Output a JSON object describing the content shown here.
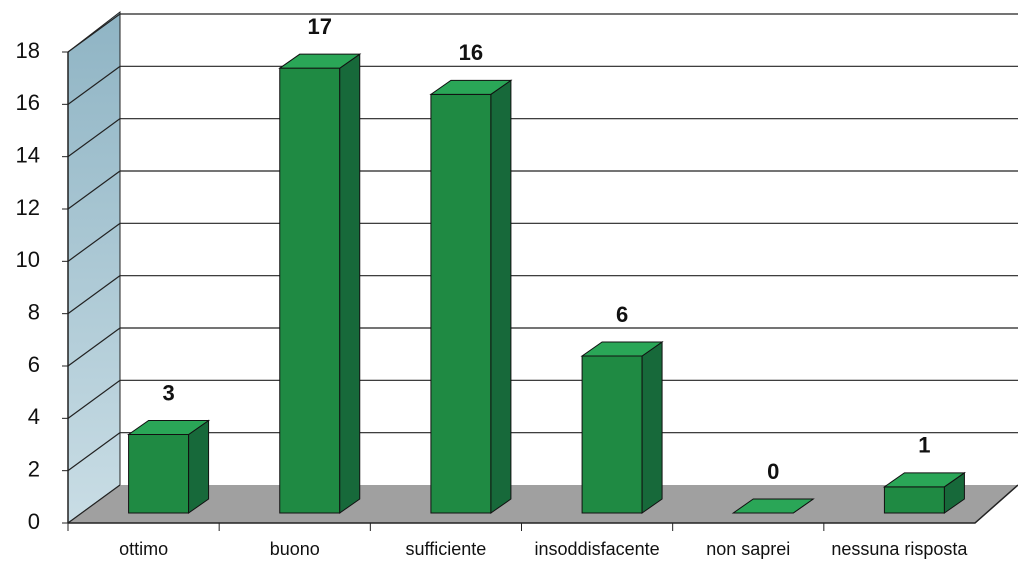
{
  "chart_data": {
    "type": "bar3d",
    "categories": [
      "ottimo",
      "buono",
      "sufficiente",
      "insoddisfacente",
      "non saprei",
      "nessuna risposta"
    ],
    "values": [
      3,
      17,
      16,
      6,
      0,
      1
    ],
    "color": "#1f8a43",
    "ylim": [
      0,
      18
    ],
    "yticks": [
      0,
      2,
      4,
      6,
      8,
      10,
      12,
      14,
      16,
      18
    ],
    "grid": true
  }
}
